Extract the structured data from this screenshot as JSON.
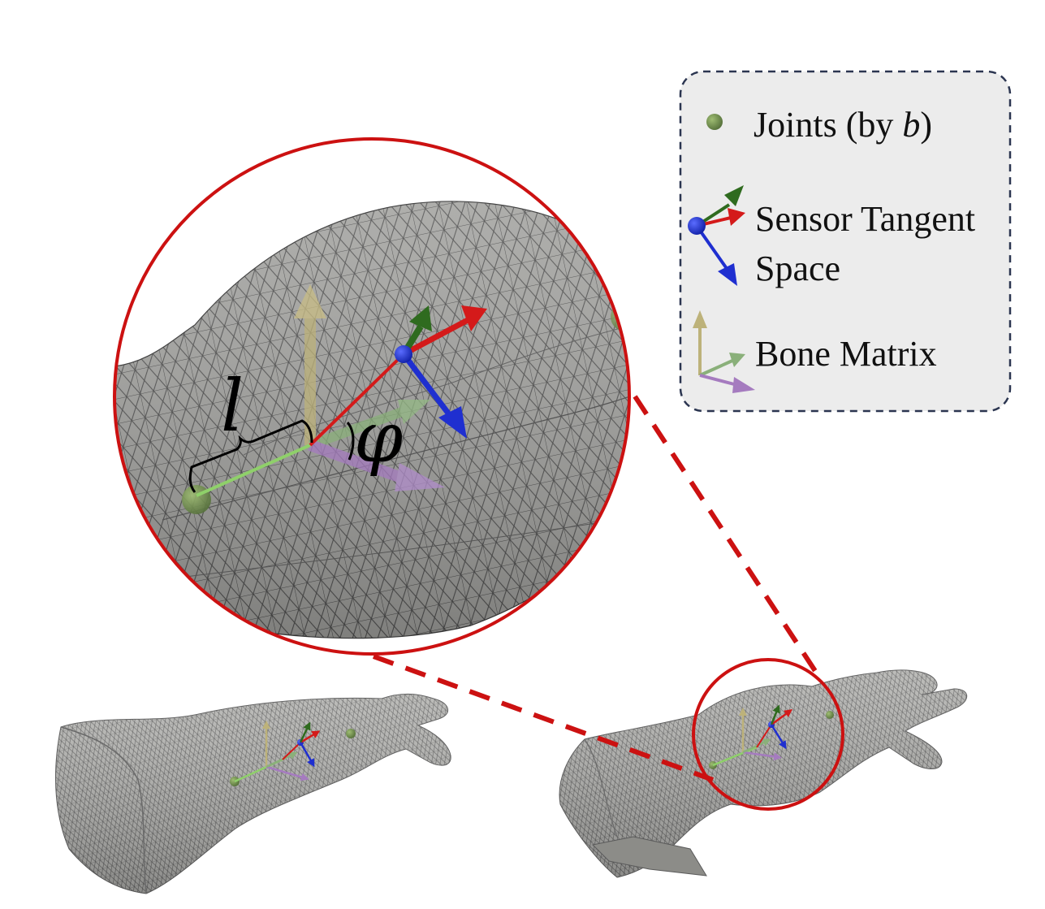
{
  "figure": {
    "symbols": {
      "length": "l",
      "angle": "φ"
    },
    "legend": {
      "items": [
        {
          "id": "joints",
          "label": "Joints (by ",
          "label_var": "b",
          "label_end": ")"
        },
        {
          "id": "sensor",
          "label_line1": "Sensor Tangent",
          "label_line2": "Space"
        },
        {
          "id": "bone",
          "label": "Bone Matrix"
        }
      ]
    },
    "colors": {
      "mesh_fill": "#9c9c98",
      "mesh_fill_dark": "#7e7e7a",
      "mesh_line": "#3a3a3a",
      "zoom_circle": "#cc1111",
      "legend_border": "#2b3550",
      "legend_bg": "#ececec",
      "joint": "#6f8a4a",
      "axis_red": "#d41a1a",
      "axis_green": "#2f6b1f",
      "axis_blue": "#1f2fd0",
      "bone_yellow": "#bdb27a",
      "bone_green": "#8ab07a",
      "bone_purple": "#a57bbf",
      "bone_link": "#8fd06a"
    }
  }
}
